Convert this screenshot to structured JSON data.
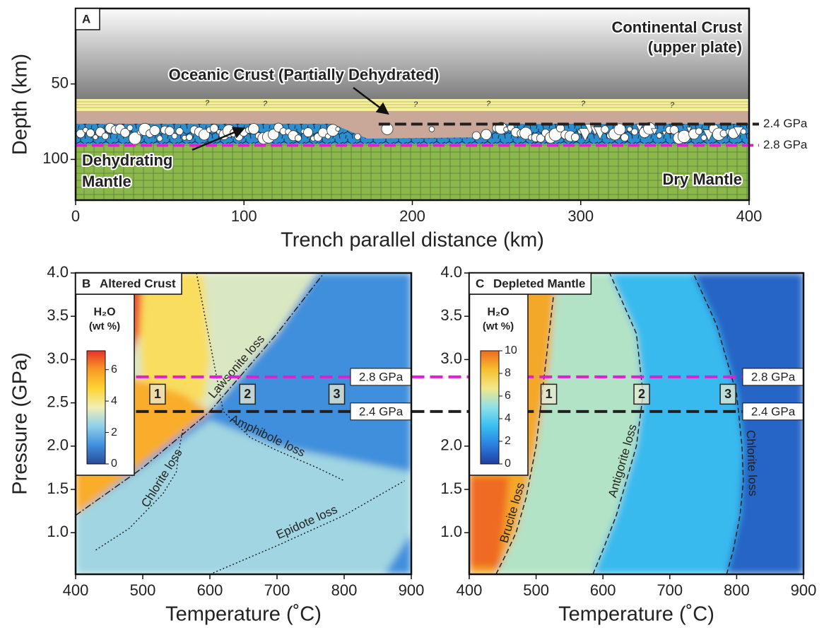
{
  "chart_data": [
    {
      "type": "section",
      "panel": "A",
      "xlabel": "Trench parallel distance (km)",
      "ylabel": "Depth (km)",
      "xlim": [
        0,
        400
      ],
      "xticks": [
        0,
        100,
        200,
        300,
        400
      ],
      "ylim": [
        0,
        127
      ],
      "yticks": [
        50,
        100
      ],
      "annotations": [
        "Continental Crust",
        "(upper plate)",
        "Oceanic Crust (Partially Dehydrated)",
        "Dehydrating",
        "Mantle",
        "Dry Mantle"
      ],
      "uncertain_mark": "?",
      "levels": [
        {
          "label": "2.4 GPa",
          "depth": 76.6,
          "color": "#231f20"
        },
        {
          "label": "2.8 GPa",
          "depth": 90.7,
          "color": "#e020d0"
        }
      ]
    },
    {
      "type": "phase",
      "panel": "B",
      "title": "Altered Crust",
      "xlabel": "Temperature (˚C)",
      "ylabel": "Pressure (GPa)",
      "xlim": [
        400,
        900
      ],
      "xticks": [
        400,
        500,
        600,
        700,
        800,
        900
      ],
      "ylim": [
        0.52,
        4.0
      ],
      "yticks": [
        {
          "value": 1,
          "label": "1.0"
        },
        1.5,
        {
          "value": 2,
          "label": "2.0"
        },
        2.5,
        {
          "value": 3,
          "label": "3.0"
        },
        3.5,
        {
          "value": 4,
          "label": "4.0"
        }
      ],
      "colorbar": {
        "title": "H₂O",
        "subtitle": "(wt %)",
        "clim": [
          0,
          7.2
        ],
        "ticks": [
          0,
          2,
          4,
          6
        ],
        "colors": [
          "#2b4a9c",
          "#3f8fdc",
          "#8fd0ea",
          "#f2efb5",
          "#fcd433",
          "#f79a25",
          "#e8312a"
        ]
      },
      "fields": [
        {
          "value": 1.2,
          "x": [
            400,
            900,
            900,
            400
          ],
          "y": [
            0.52,
            0.52,
            4.0,
            4.0
          ]
        },
        {
          "value": 2.6,
          "x": [
            400,
            860,
            900,
            900,
            700,
            600,
            400
          ],
          "y": [
            0.52,
            0.52,
            1.0,
            1.7,
            2.0,
            2.3,
            1.2
          ]
        },
        {
          "value": 3.3,
          "x": [
            400,
            600,
            700,
            760,
            400
          ],
          "y": [
            1.2,
            2.4,
            3.3,
            4.0,
            4.0
          ]
        },
        {
          "value": 4.4,
          "x": [
            490,
            590,
            600,
            590,
            500
          ],
          "y": [
            4.0,
            4.0,
            3.0,
            2.5,
            2.7
          ]
        },
        {
          "value": 5.6,
          "x": [
            400,
            600,
            560,
            480,
            400
          ],
          "y": [
            1.2,
            2.4,
            2.6,
            2.8,
            3.0
          ]
        },
        {
          "value": 7.0,
          "x": [
            480,
            500,
            495,
            480
          ],
          "y": [
            4.0,
            4.0,
            3.3,
            3.0
          ]
        }
      ],
      "curves": [
        {
          "name": "Lawsonite loss",
          "style": "dashdot",
          "x": [
            400,
            500,
            600,
            700,
            770
          ],
          "y": [
            1.2,
            1.75,
            2.4,
            3.3,
            4.0
          ]
        },
        {
          "name": "Amphibole loss",
          "style": "dotted",
          "x": [
            580,
            600,
            620,
            660,
            700,
            760,
            800
          ],
          "y": [
            4.0,
            3.2,
            2.4,
            2.1,
            1.95,
            1.75,
            1.6
          ]
        },
        {
          "name": "Chlorite loss",
          "style": "dotted",
          "x": [
            430,
            480,
            530,
            550,
            555,
            560
          ],
          "y": [
            0.8,
            1.05,
            1.45,
            1.7,
            2.0,
            2.2
          ]
        },
        {
          "name": "Epidote loss",
          "style": "dotted",
          "x": [
            600,
            700,
            800,
            890
          ],
          "y": [
            0.52,
            0.85,
            1.2,
            1.6
          ]
        }
      ],
      "levels": [
        {
          "label": "2.8 GPa",
          "value": 2.8,
          "color": "#e020d0"
        },
        {
          "label": "2.4 GPa",
          "value": 2.4,
          "color": "#231f20"
        }
      ],
      "markers": [
        {
          "label": "1",
          "x": 522,
          "y": 2.6
        },
        {
          "label": "2",
          "x": 656,
          "y": 2.6
        },
        {
          "label": "3",
          "x": 789,
          "y": 2.6
        }
      ]
    },
    {
      "type": "phase",
      "panel": "C",
      "title": "Depleted Mantle",
      "xlabel": "Temperature (˚C)",
      "xlim": [
        400,
        900
      ],
      "xticks": [
        400,
        500,
        600,
        700,
        800,
        900
      ],
      "ylim": [
        0.52,
        4.0
      ],
      "yticks": [
        {
          "value": 1,
          "label": "1.0"
        },
        1.5,
        {
          "value": 2,
          "label": "2.0"
        },
        {
          "value": 3,
          "label": "3.0"
        },
        3.5,
        {
          "value": 4,
          "label": "4.0"
        }
      ],
      "colorbar": {
        "title": "H₂O",
        "subtitle": "(wt %)",
        "clim": [
          0,
          10
        ],
        "ticks": [
          0,
          2,
          4,
          6,
          8,
          10
        ],
        "colors": [
          "#1f3fa0",
          "#2a7fe0",
          "#38bff0",
          "#8ee0e8",
          "#f2e88a",
          "#f6c030",
          "#ef6a20"
        ]
      },
      "fields": [
        {
          "value": 1.0,
          "x": [
            400,
            900,
            900,
            400
          ],
          "y": [
            0.52,
            0.52,
            4.0,
            4.0
          ]
        },
        {
          "value": 3.2,
          "x": [
            585,
            620,
            650,
            660,
            650,
            610,
            735,
            770,
            800,
            810,
            805,
            785
          ],
          "y": [
            0.52,
            1.2,
            2.0,
            2.6,
            3.3,
            4.0,
            4.0,
            3.4,
            2.6,
            2.0,
            1.2,
            0.52
          ]
        },
        {
          "value": 5.6,
          "x": [
            440,
            470,
            500,
            520,
            530,
            610,
            650,
            660,
            650,
            620,
            585
          ],
          "y": [
            0.52,
            1.0,
            2.0,
            3.0,
            4.0,
            4.0,
            3.3,
            2.6,
            2.0,
            1.2,
            0.52
          ]
        },
        {
          "value": 8.8,
          "x": [
            400,
            440,
            470,
            500,
            520,
            530,
            400
          ],
          "y": [
            0.52,
            0.52,
            1.0,
            2.0,
            3.0,
            4.0,
            4.0
          ]
        },
        {
          "value": 10,
          "x": [
            400,
            445,
            460,
            400
          ],
          "y": [
            0.6,
            0.6,
            1.65,
            1.65
          ]
        }
      ],
      "curves": [
        {
          "name": "Brucite loss",
          "style": "dashed",
          "x": [
            440,
            455,
            470,
            485,
            500,
            530
          ],
          "y": [
            0.52,
            0.75,
            1.0,
            1.4,
            2.0,
            4.0
          ]
        },
        {
          "name": "Antigorite loss",
          "style": "dashed",
          "x": [
            585,
            600,
            620,
            635,
            650,
            660,
            650,
            610
          ],
          "y": [
            0.52,
            0.8,
            1.2,
            1.6,
            2.0,
            2.6,
            3.3,
            4.0
          ]
        },
        {
          "name": "Chlorite loss",
          "style": "dashed",
          "x": [
            785,
            795,
            805,
            810,
            808,
            800,
            770,
            735
          ],
          "y": [
            0.52,
            0.8,
            1.2,
            1.6,
            2.0,
            2.6,
            3.4,
            4.0
          ]
        }
      ],
      "levels": [
        {
          "label": "2.8 GPa",
          "value": 2.8,
          "color": "#e020d0"
        },
        {
          "label": "2.4 GPa",
          "value": 2.4,
          "color": "#231f20"
        }
      ],
      "markers": [
        {
          "label": "1",
          "x": 519,
          "y": 2.6
        },
        {
          "label": "2",
          "x": 658,
          "y": 2.6
        },
        {
          "label": "3",
          "x": 787,
          "y": 2.6
        }
      ]
    }
  ]
}
